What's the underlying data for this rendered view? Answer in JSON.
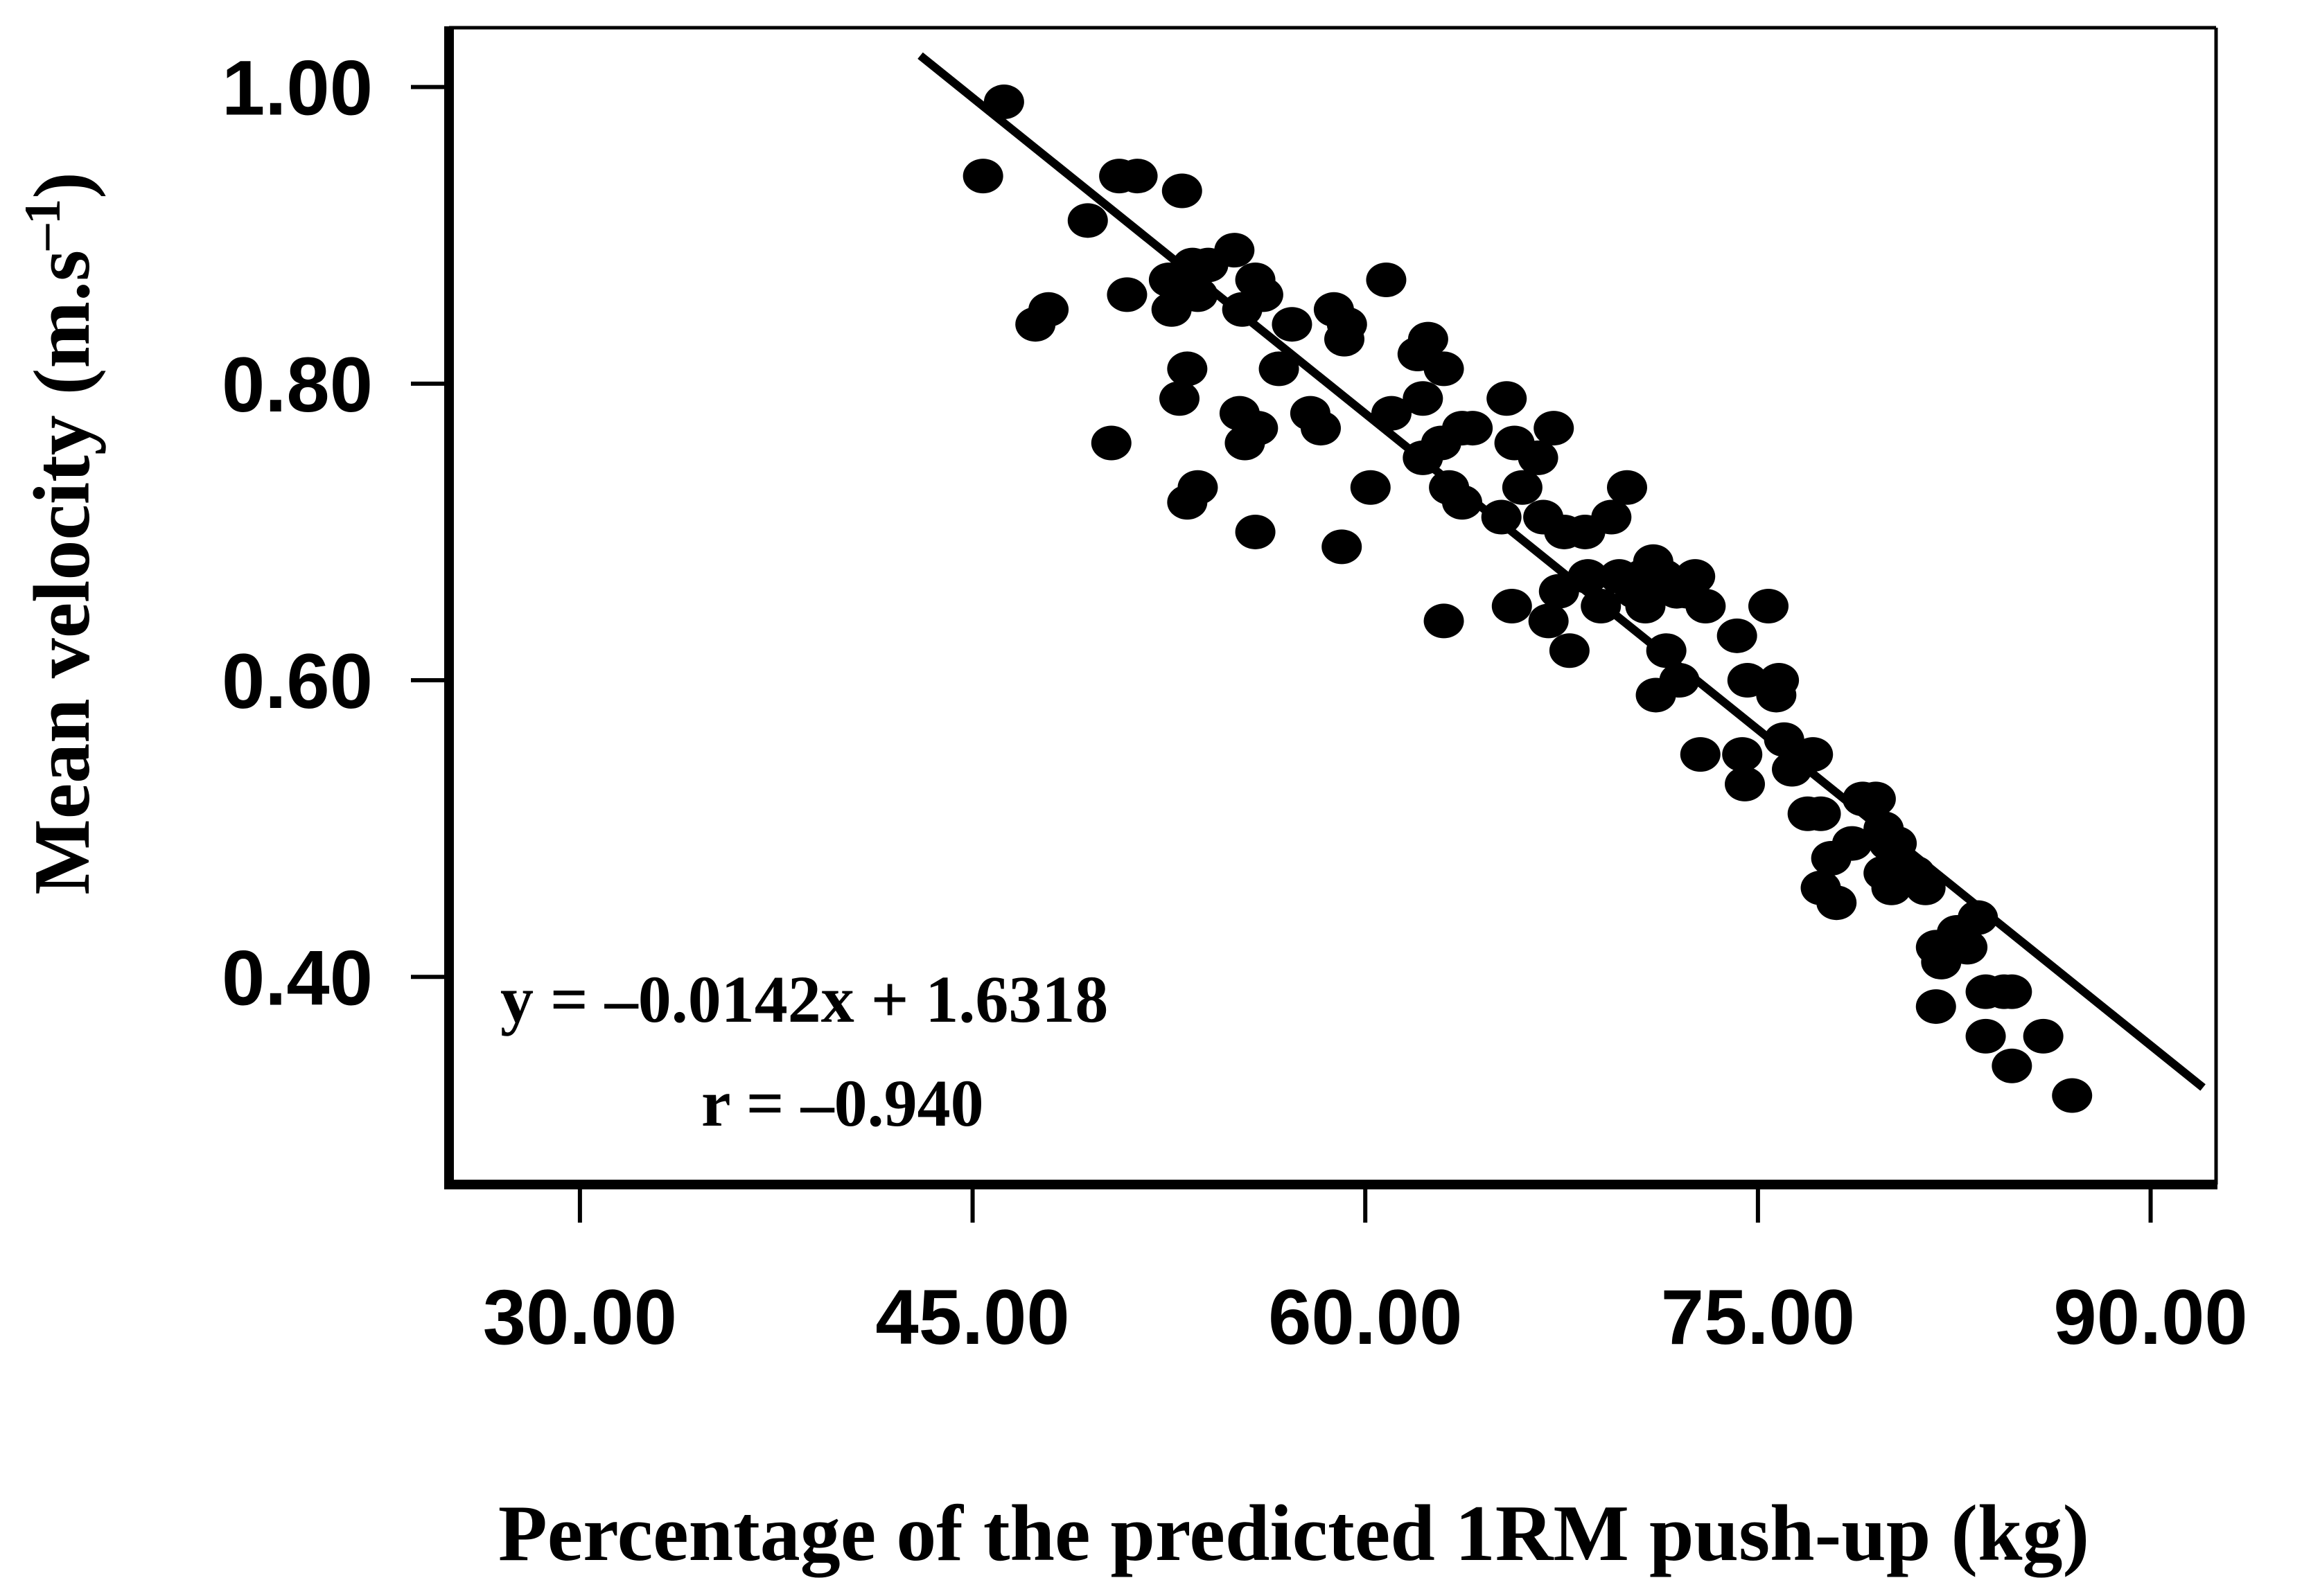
{
  "chart_data": {
    "type": "scatter",
    "xlabel": "Percentage of the predicted 1RM push-up (kg)",
    "ylabel_main": "Mean velocity (m.s",
    "ylabel_sup": "–1",
    "ylabel_close": ")",
    "xlim": [
      25,
      92.5
    ],
    "ylim": [
      0.26,
      1.04
    ],
    "x_ticks": [
      30,
      45,
      60,
      75,
      90
    ],
    "x_tick_labels": [
      "30.00",
      "45.00",
      "60.00",
      "75.00",
      "90.00"
    ],
    "y_ticks": [
      0.4,
      0.6,
      0.8,
      1.0
    ],
    "y_tick_labels": [
      "0.40",
      "0.60",
      "0.80",
      "1.00"
    ],
    "grid": false,
    "legend": "none",
    "annotations": {
      "equation": "y = –0.0142x + 1.6318",
      "r": "r = –0.940"
    },
    "fit_line": {
      "slope": -0.0142,
      "intercept": 1.6318,
      "x_range": [
        43.0,
        92.0
      ]
    },
    "colors": {
      "points": "#000000",
      "line": "#000000",
      "frame": "#000000",
      "background": "#ffffff"
    },
    "points": [
      [
        46.2,
        0.99
      ],
      [
        45.4,
        0.94
      ],
      [
        49.4,
        0.91
      ],
      [
        50.6,
        0.94
      ],
      [
        51.3,
        0.94
      ],
      [
        50.9,
        0.86
      ],
      [
        53.0,
        0.93
      ],
      [
        52.5,
        0.87
      ],
      [
        53.4,
        0.88
      ],
      [
        54.0,
        0.88
      ],
      [
        55.0,
        0.89
      ],
      [
        55.8,
        0.87
      ],
      [
        52.6,
        0.85
      ],
      [
        53.6,
        0.86
      ],
      [
        55.3,
        0.85
      ],
      [
        57.2,
        0.84
      ],
      [
        58.8,
        0.85
      ],
      [
        59.3,
        0.84
      ],
      [
        59.2,
        0.83
      ],
      [
        60.8,
        0.87
      ],
      [
        47.4,
        0.84
      ],
      [
        47.9,
        0.85
      ],
      [
        50.3,
        0.76
      ],
      [
        53.2,
        0.81
      ],
      [
        52.9,
        0.79
      ],
      [
        55.2,
        0.78
      ],
      [
        55.4,
        0.76
      ],
      [
        55.9,
        0.77
      ],
      [
        56.7,
        0.81
      ],
      [
        57.9,
        0.78
      ],
      [
        58.3,
        0.77
      ],
      [
        56.1,
        0.86
      ],
      [
        53.2,
        0.72
      ],
      [
        53.6,
        0.73
      ],
      [
        55.8,
        0.7
      ],
      [
        59.1,
        0.69
      ],
      [
        60.2,
        0.73
      ],
      [
        61.0,
        0.78
      ],
      [
        62.0,
        0.82
      ],
      [
        62.4,
        0.83
      ],
      [
        63.0,
        0.81
      ],
      [
        62.2,
        0.79
      ],
      [
        62.9,
        0.76
      ],
      [
        63.7,
        0.77
      ],
      [
        64.1,
        0.77
      ],
      [
        62.2,
        0.75
      ],
      [
        63.2,
        0.73
      ],
      [
        63.7,
        0.72
      ],
      [
        65.4,
        0.79
      ],
      [
        65.7,
        0.76
      ],
      [
        66.6,
        0.75
      ],
      [
        67.2,
        0.77
      ],
      [
        65.2,
        0.71
      ],
      [
        66.0,
        0.73
      ],
      [
        66.8,
        0.71
      ],
      [
        67.6,
        0.7
      ],
      [
        68.4,
        0.7
      ],
      [
        69.4,
        0.71
      ],
      [
        70.0,
        0.73
      ],
      [
        63.0,
        0.64
      ],
      [
        65.6,
        0.65
      ],
      [
        67.0,
        0.64
      ],
      [
        67.8,
        0.62
      ],
      [
        67.4,
        0.66
      ],
      [
        68.5,
        0.67
      ],
      [
        69.0,
        0.65
      ],
      [
        69.7,
        0.67
      ],
      [
        70.3,
        0.66
      ],
      [
        70.6,
        0.67
      ],
      [
        71.0,
        0.68
      ],
      [
        71.4,
        0.67
      ],
      [
        70.7,
        0.65
      ],
      [
        71.9,
        0.66
      ],
      [
        72.3,
        0.66
      ],
      [
        72.6,
        0.67
      ],
      [
        73.0,
        0.65
      ],
      [
        71.5,
        0.62
      ],
      [
        72.0,
        0.6
      ],
      [
        71.1,
        0.59
      ],
      [
        72.8,
        0.55
      ],
      [
        74.2,
        0.63
      ],
      [
        74.6,
        0.6
      ],
      [
        75.4,
        0.65
      ],
      [
        75.8,
        0.6
      ],
      [
        75.7,
        0.59
      ],
      [
        74.4,
        0.55
      ],
      [
        74.5,
        0.53
      ],
      [
        76.0,
        0.56
      ],
      [
        76.3,
        0.54
      ],
      [
        77.1,
        0.55
      ],
      [
        76.9,
        0.51
      ],
      [
        77.4,
        0.51
      ],
      [
        77.8,
        0.48
      ],
      [
        77.4,
        0.46
      ],
      [
        78.0,
        0.45
      ],
      [
        78.6,
        0.49
      ],
      [
        79.0,
        0.52
      ],
      [
        79.5,
        0.52
      ],
      [
        79.8,
        0.5
      ],
      [
        80.0,
        0.49
      ],
      [
        80.3,
        0.49
      ],
      [
        79.8,
        0.47
      ],
      [
        80.1,
        0.46
      ],
      [
        80.5,
        0.47
      ],
      [
        81.0,
        0.47
      ],
      [
        81.4,
        0.46
      ],
      [
        81.8,
        0.42
      ],
      [
        82.0,
        0.41
      ],
      [
        82.3,
        0.42
      ],
      [
        82.6,
        0.43
      ],
      [
        83.0,
        0.42
      ],
      [
        83.4,
        0.44
      ],
      [
        81.8,
        0.38
      ],
      [
        83.7,
        0.39
      ],
      [
        84.4,
        0.39
      ],
      [
        84.7,
        0.39
      ],
      [
        83.7,
        0.36
      ],
      [
        84.7,
        0.34
      ],
      [
        85.9,
        0.36
      ],
      [
        87.0,
        0.32
      ]
    ]
  }
}
